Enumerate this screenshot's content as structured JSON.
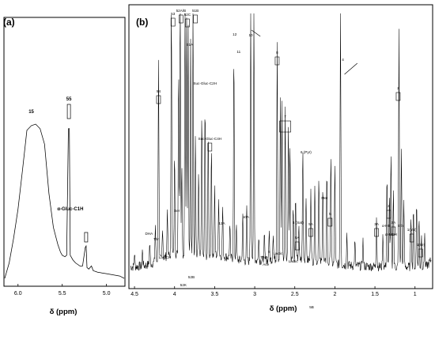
{
  "chart_data": [
    {
      "panel": "(a)",
      "type": "line",
      "xlabel": "δ (ppm)",
      "ylabel": "",
      "xlim": [
        6.15,
        4.8
      ],
      "x_reversed": true,
      "xticks": [
        "6.0",
        "5.5",
        "5.0"
      ],
      "xtick_values": [
        6.0,
        5.5,
        5.0
      ],
      "grid": false,
      "spectrum": [
        [
          6.15,
          0.0
        ],
        [
          6.1,
          0.1
        ],
        [
          6.05,
          0.26
        ],
        [
          6.0,
          0.45
        ],
        [
          5.95,
          0.7
        ],
        [
          5.9,
          0.96
        ],
        [
          5.85,
          0.99
        ],
        [
          5.8,
          1.0
        ],
        [
          5.75,
          0.97
        ],
        [
          5.7,
          0.87
        ],
        [
          5.65,
          0.55
        ],
        [
          5.6,
          0.33
        ],
        [
          5.55,
          0.22
        ],
        [
          5.52,
          0.17
        ],
        [
          5.5,
          0.15
        ],
        [
          5.47,
          0.14
        ],
        [
          5.45,
          0.15
        ],
        [
          5.43,
          0.97
        ],
        [
          5.42,
          0.97
        ],
        [
          5.41,
          0.15
        ],
        [
          5.38,
          0.12
        ],
        [
          5.35,
          0.1
        ],
        [
          5.3,
          0.08
        ],
        [
          5.27,
          0.08
        ],
        [
          5.24,
          0.2
        ],
        [
          5.23,
          0.21
        ],
        [
          5.22,
          0.07
        ],
        [
          5.2,
          0.06
        ],
        [
          5.17,
          0.08
        ],
        [
          5.15,
          0.05
        ],
        [
          5.1,
          0.04
        ],
        [
          5.05,
          0.035
        ],
        [
          5.0,
          0.03
        ],
        [
          4.95,
          0.025
        ],
        [
          4.9,
          0.02
        ],
        [
          4.85,
          0.015
        ],
        [
          4.8,
          0.0
        ]
      ],
      "annotations": [
        {
          "label": "15",
          "x": 5.85
        },
        {
          "label": "55",
          "x": 5.425
        },
        {
          "label": "α-Gluc-C1H",
          "x": 5.23
        }
      ]
    },
    {
      "panel": "(b)",
      "type": "line",
      "xlabel": "δ (ppm)",
      "ylabel": "",
      "xlim": [
        4.55,
        0.8
      ],
      "x_reversed": true,
      "xticks": [
        "4.5",
        "4",
        "3.5",
        "3",
        "2.5",
        "2",
        "1.5",
        "1"
      ],
      "xtick_values": [
        4.5,
        4.0,
        3.5,
        3.0,
        2.5,
        2.0,
        1.5,
        1.0
      ],
      "grid": false,
      "peaks": [
        {
          "x": 4.5,
          "y": 0.05
        },
        {
          "x": 4.4,
          "y": 0.06
        },
        {
          "x": 4.31,
          "y": 0.08
        },
        {
          "x": 4.24,
          "y": 0.14
        },
        {
          "x": 4.2,
          "y": 0.76
        },
        {
          "x": 4.15,
          "y": 0.12
        },
        {
          "x": 4.09,
          "y": 0.18
        },
        {
          "x": 4.04,
          "y": 0.97
        },
        {
          "x": 4.0,
          "y": 0.38
        },
        {
          "x": 3.95,
          "y": 0.72
        },
        {
          "x": 3.93,
          "y": 0.99
        },
        {
          "x": 3.91,
          "y": 0.35
        },
        {
          "x": 3.87,
          "y": 0.98
        },
        {
          "x": 3.85,
          "y": 0.9
        },
        {
          "x": 3.83,
          "y": 0.87
        },
        {
          "x": 3.8,
          "y": 0.82
        },
        {
          "x": 3.77,
          "y": 1.0
        },
        {
          "x": 3.74,
          "y": 0.45
        },
        {
          "x": 3.7,
          "y": 0.32
        },
        {
          "x": 3.66,
          "y": 0.55
        },
        {
          "x": 3.62,
          "y": 0.58
        },
        {
          "x": 3.58,
          "y": 0.48
        },
        {
          "x": 3.54,
          "y": 0.4
        },
        {
          "x": 3.5,
          "y": 0.25
        },
        {
          "x": 3.45,
          "y": 0.22
        },
        {
          "x": 3.4,
          "y": 0.18
        },
        {
          "x": 3.31,
          "y": 0.12
        },
        {
          "x": 3.26,
          "y": 0.78
        },
        {
          "x": 3.23,
          "y": 0.13
        },
        {
          "x": 3.15,
          "y": 0.17
        },
        {
          "x": 3.1,
          "y": 0.2
        },
        {
          "x": 3.05,
          "y": 1.0
        },
        {
          "x": 3.01,
          "y": 0.98
        },
        {
          "x": 2.95,
          "y": 0.1
        },
        {
          "x": 2.88,
          "y": 0.09
        },
        {
          "x": 2.82,
          "y": 0.1
        },
        {
          "x": 2.77,
          "y": 0.1
        },
        {
          "x": 2.72,
          "y": 0.82
        },
        {
          "x": 2.68,
          "y": 0.6
        },
        {
          "x": 2.66,
          "y": 0.58
        },
        {
          "x": 2.62,
          "y": 0.56
        },
        {
          "x": 2.58,
          "y": 0.5
        },
        {
          "x": 2.56,
          "y": 0.45
        },
        {
          "x": 2.52,
          "y": 0.2
        },
        {
          "x": 2.49,
          "y": 0.23
        },
        {
          "x": 2.45,
          "y": 0.12
        },
        {
          "x": 2.4,
          "y": 0.42
        },
        {
          "x": 2.36,
          "y": 0.25
        },
        {
          "x": 2.3,
          "y": 0.28
        },
        {
          "x": 2.25,
          "y": 0.3
        },
        {
          "x": 2.2,
          "y": 0.33
        },
        {
          "x": 2.15,
          "y": 0.3
        },
        {
          "x": 2.1,
          "y": 0.35
        },
        {
          "x": 2.05,
          "y": 0.42
        },
        {
          "x": 2.0,
          "y": 0.38
        },
        {
          "x": 1.93,
          "y": 1.0
        },
        {
          "x": 1.85,
          "y": 0.12
        },
        {
          "x": 1.75,
          "y": 0.09
        },
        {
          "x": 1.65,
          "y": 0.1
        },
        {
          "x": 1.48,
          "y": 0.2
        },
        {
          "x": 1.4,
          "y": 0.12
        },
        {
          "x": 1.35,
          "y": 0.35
        },
        {
          "x": 1.32,
          "y": 0.27
        },
        {
          "x": 1.3,
          "y": 0.42
        },
        {
          "x": 1.27,
          "y": 0.3
        },
        {
          "x": 1.2,
          "y": 0.9
        },
        {
          "x": 1.17,
          "y": 0.45
        },
        {
          "x": 1.14,
          "y": 0.24
        },
        {
          "x": 1.05,
          "y": 0.2
        },
        {
          "x": 1.02,
          "y": 0.22
        },
        {
          "x": 0.98,
          "y": 0.25
        },
        {
          "x": 0.95,
          "y": 0.18
        },
        {
          "x": 0.92,
          "y": 0.12
        },
        {
          "x": 0.88,
          "y": 0.13
        }
      ],
      "annotations": [
        {
          "label": "DHA",
          "x": 4.32
        },
        {
          "label": "Thr",
          "x": 4.23
        },
        {
          "label": "54",
          "x": 4.2
        },
        {
          "label": "Lac-CH",
          "x": 4.12
        },
        {
          "label": "53",
          "x": 4.02
        },
        {
          "label": "Ser",
          "x": 3.97
        },
        {
          "label": "52A/B",
          "x": 3.92
        },
        {
          "label": "52K",
          "x": 3.89
        },
        {
          "label": "52B",
          "x": 3.79
        },
        {
          "label": "52C",
          "x": 3.84
        },
        {
          "label": "51A",
          "x": 3.81
        },
        {
          "label": "51B",
          "x": 3.74
        },
        {
          "label": "Suc-Gluc-C2H",
          "x": 3.62
        },
        {
          "label": "Suc-Gluc-C4H",
          "x": 3.56
        },
        {
          "label": "12A",
          "x": 3.41
        },
        {
          "label": "12",
          "x": 3.25
        },
        {
          "label": "11",
          "x": 3.2
        },
        {
          "label": "10A",
          "x": 3.11
        },
        {
          "label": "10",
          "x": 3.05
        },
        {
          "label": "TMA",
          "x": 2.88
        },
        {
          "label": "Ace",
          "x": 2.86
        },
        {
          "label": "9",
          "x": 2.82
        },
        {
          "label": "8",
          "x": 2.72
        },
        {
          "label": "7",
          "x": 2.62
        },
        {
          "label": "Lactic",
          "x": 2.71
        },
        {
          "label": "Lactic",
          "x": 2.52
        },
        {
          "label": "6A",
          "x": 2.47
        },
        {
          "label": "6 (Sat)",
          "x": 2.46
        },
        {
          "label": "6 (Pyr)",
          "x": 2.36
        },
        {
          "label": "5A",
          "x": 2.3
        },
        {
          "label": "5B",
          "x": 2.29
        },
        {
          "label": "Met",
          "x": 2.13
        },
        {
          "label": "5",
          "x": 2.06
        },
        {
          "label": "4",
          "x": 1.9
        },
        {
          "label": "3A",
          "x": 1.48
        },
        {
          "label": "α-HB",
          "x": 1.36
        },
        {
          "label": "3",
          "x": 1.33
        },
        {
          "label": "αHvDH",
          "x": 1.3
        },
        {
          "label": "2A",
          "x": 1.27
        },
        {
          "label": "2",
          "x": 1.21
        },
        {
          "label": "Eth",
          "x": 1.18
        },
        {
          "label": "1(Val)",
          "x": 1.04
        },
        {
          "label": "1(Ile)",
          "x": 0.93
        }
      ]
    }
  ]
}
